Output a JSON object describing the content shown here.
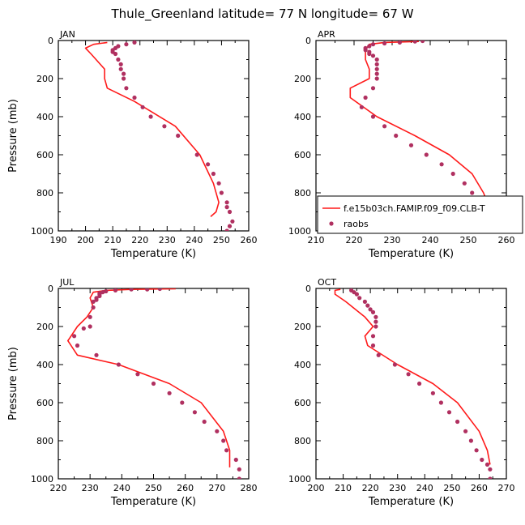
{
  "title": "Thule_Greenland   latitude= 77 N longitude= 67 W",
  "legend": {
    "model_label": "f.e15b03ch.FAMIP.f09_f09.CLB-T",
    "obs_label": "raobs"
  },
  "colors": {
    "model_line": "#ff1a1a",
    "obs_marker": "#b03060"
  },
  "chart_data": [
    {
      "type": "line",
      "panel_label": "JAN",
      "xlabel": "Temperature (K)",
      "ylabel": "Pressure (mb)",
      "xlim": [
        190,
        260
      ],
      "ylim": [
        1000,
        0
      ],
      "y_reversed": true,
      "xticks": [
        190,
        200,
        210,
        220,
        230,
        240,
        250,
        260
      ],
      "yticks": [
        0,
        200,
        400,
        600,
        800,
        1000
      ],
      "series": [
        {
          "kind": "model_line",
          "x": [
            208,
            203,
            200,
            202,
            207,
            207,
            208,
            218,
            233,
            242,
            247,
            249,
            248,
            246
          ],
          "y": [
            10,
            20,
            40,
            70,
            150,
            200,
            250,
            320,
            450,
            600,
            750,
            850,
            900,
            925
          ]
        },
        {
          "kind": "obs_points",
          "x": [
            218,
            215,
            212,
            211,
            210,
            210,
            211,
            212,
            213,
            213,
            214,
            214,
            215,
            218,
            221,
            224,
            229,
            234,
            241,
            245,
            247,
            249,
            250,
            252,
            252,
            253,
            254,
            253,
            252
          ],
          "y": [
            10,
            20,
            30,
            40,
            50,
            60,
            70,
            100,
            125,
            150,
            175,
            200,
            250,
            300,
            350,
            400,
            450,
            500,
            600,
            650,
            700,
            750,
            800,
            850,
            875,
            900,
            950,
            975,
            1000
          ]
        }
      ]
    },
    {
      "type": "line",
      "panel_label": "APR",
      "xlabel": "Temperature (K)",
      "ylabel": "",
      "xlim": [
        210,
        260
      ],
      "ylim": [
        1000,
        0
      ],
      "y_reversed": true,
      "xticks": [
        210,
        220,
        230,
        240,
        250,
        260
      ],
      "yticks": [
        0,
        200,
        400,
        600,
        800,
        1000
      ],
      "series": [
        {
          "kind": "model_line",
          "x": [
            237,
            228,
            224,
            223,
            223,
            224,
            224,
            219,
            219,
            226,
            236,
            245,
            251,
            254,
            256,
            256
          ],
          "y": [
            5,
            10,
            20,
            50,
            100,
            150,
            200,
            250,
            300,
            400,
            500,
            600,
            700,
            800,
            900,
            925
          ]
        },
        {
          "kind": "obs_points",
          "x": [
            238,
            236,
            232,
            228,
            225,
            224,
            223,
            223,
            224,
            224,
            225,
            226,
            226,
            226,
            226,
            226,
            225,
            223,
            222,
            225,
            228,
            231,
            235,
            239,
            243,
            246,
            249,
            251,
            253,
            254,
            255,
            256,
            257,
            257
          ],
          "y": [
            2,
            5,
            10,
            15,
            20,
            30,
            40,
            50,
            60,
            70,
            80,
            100,
            125,
            150,
            175,
            200,
            250,
            300,
            350,
            400,
            450,
            500,
            550,
            600,
            650,
            700,
            750,
            800,
            850,
            875,
            900,
            925,
            950,
            1000
          ]
        }
      ]
    },
    {
      "type": "line",
      "panel_label": "JUL",
      "xlabel": "Temperature (K)",
      "ylabel": "Pressure (mb)",
      "xlim": [
        220,
        280
      ],
      "ylim": [
        1000,
        0
      ],
      "y_reversed": true,
      "xticks": [
        220,
        230,
        240,
        250,
        260,
        270,
        280
      ],
      "yticks": [
        0,
        200,
        400,
        600,
        800,
        1000
      ],
      "series": [
        {
          "kind": "model_line",
          "x": [
            257,
            243,
            235,
            231,
            230,
            231,
            229,
            226,
            224,
            223,
            226,
            239,
            255,
            265,
            272,
            274,
            274
          ],
          "y": [
            2,
            5,
            10,
            20,
            50,
            100,
            150,
            200,
            250,
            275,
            350,
            400,
            500,
            600,
            750,
            850,
            940
          ]
        },
        {
          "kind": "obs_points",
          "x": [
            252,
            248,
            243,
            238,
            235,
            234,
            233,
            233,
            233,
            232,
            232,
            231,
            231,
            230,
            230,
            228,
            225,
            226,
            232,
            239,
            245,
            250,
            255,
            259,
            263,
            266,
            270,
            272,
            273,
            276,
            277,
            277
          ],
          "y": [
            2,
            5,
            5,
            10,
            15,
            20,
            25,
            30,
            40,
            50,
            60,
            70,
            100,
            150,
            200,
            210,
            250,
            300,
            350,
            400,
            450,
            500,
            550,
            600,
            650,
            700,
            750,
            800,
            850,
            900,
            950,
            1000
          ]
        }
      ]
    },
    {
      "type": "line",
      "panel_label": "OCT",
      "xlabel": "Temperature (K)",
      "ylabel": "",
      "xlim": [
        200,
        270
      ],
      "ylim": [
        1000,
        0
      ],
      "y_reversed": true,
      "xticks": [
        200,
        210,
        220,
        230,
        240,
        250,
        260,
        270
      ],
      "yticks": [
        0,
        200,
        400,
        600,
        800,
        1000
      ],
      "series": [
        {
          "kind": "model_line",
          "x": [
            209,
            207,
            207,
            211,
            218,
            221,
            218,
            219,
            230,
            243,
            252,
            260,
            263,
            264
          ],
          "y": [
            5,
            10,
            30,
            70,
            150,
            200,
            250,
            300,
            400,
            500,
            600,
            750,
            850,
            925
          ]
        },
        {
          "kind": "obs_points",
          "x": [
            213,
            214,
            215,
            216,
            218,
            219,
            220,
            221,
            222,
            222,
            222,
            221,
            221,
            223,
            229,
            234,
            238,
            243,
            246,
            249,
            252,
            255,
            257,
            259,
            261,
            263,
            264,
            264
          ],
          "y": [
            10,
            20,
            30,
            50,
            70,
            90,
            110,
            125,
            150,
            175,
            200,
            250,
            300,
            350,
            400,
            450,
            500,
            550,
            600,
            650,
            700,
            750,
            800,
            850,
            900,
            925,
            950,
            1000
          ]
        }
      ]
    }
  ]
}
